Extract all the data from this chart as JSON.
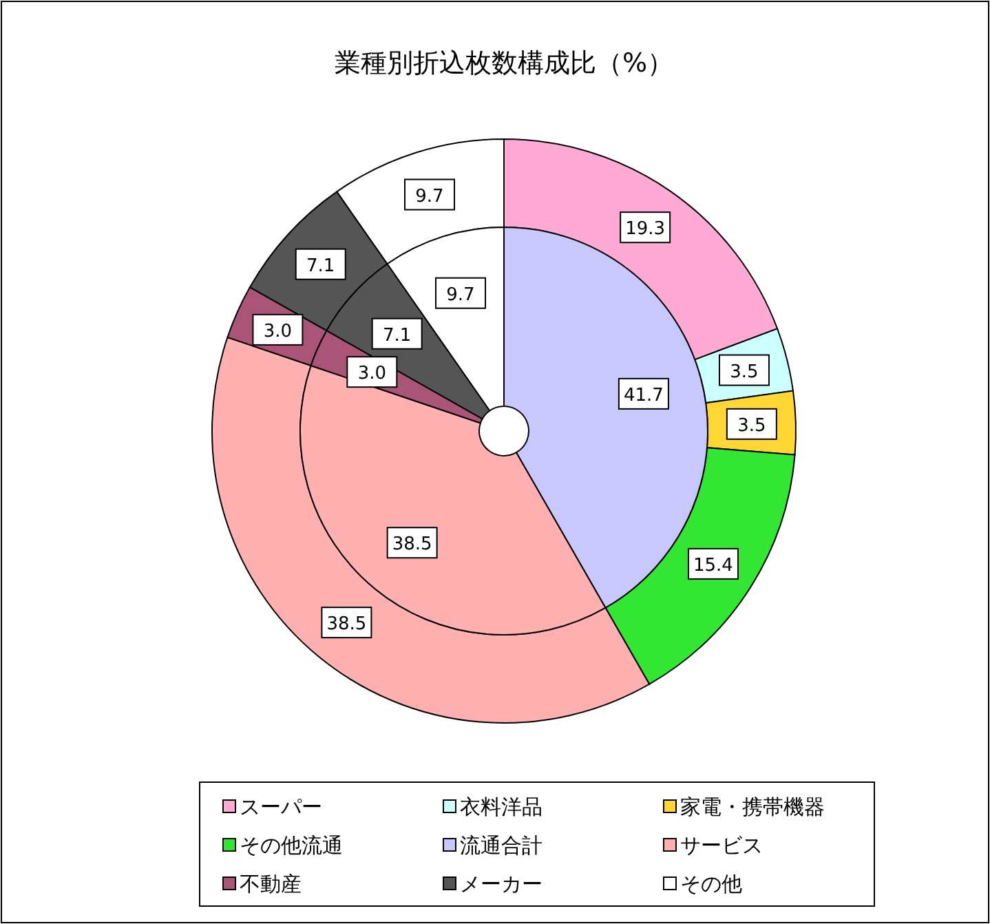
{
  "chart_data": {
    "type": "donut",
    "title": "業種別折込枚数構成比（%）",
    "categories": [
      "スーパー",
      "衣料洋品",
      "家電・携帯機器",
      "その他流通",
      "流通合計",
      "サービス",
      "不動産",
      "メーカー",
      "その他"
    ],
    "colors": [
      "#ffaad4",
      "#ccffff",
      "#ffd633",
      "#33e633",
      "#c8c8ff",
      "#ffb0b0",
      "#aa5577",
      "#555555",
      "#ffffff"
    ],
    "series": [
      {
        "values": [
          19.3,
          3.5,
          3.5,
          15.4,
          null,
          38.5,
          3.0,
          7.1,
          9.7
        ],
        "value_labels": [
          "19.3",
          "3.5",
          "3.5",
          "15.4",
          null,
          "38.5",
          "3.0",
          "7.1",
          "9.7"
        ]
      },
      {
        "values": [
          null,
          null,
          null,
          null,
          41.7,
          38.5,
          3.0,
          7.1,
          9.7
        ],
        "value_labels": [
          null,
          null,
          null,
          null,
          "41.7",
          "38.5",
          "3.0",
          "7.1",
          "9.7"
        ]
      }
    ],
    "legend": "bottom"
  }
}
